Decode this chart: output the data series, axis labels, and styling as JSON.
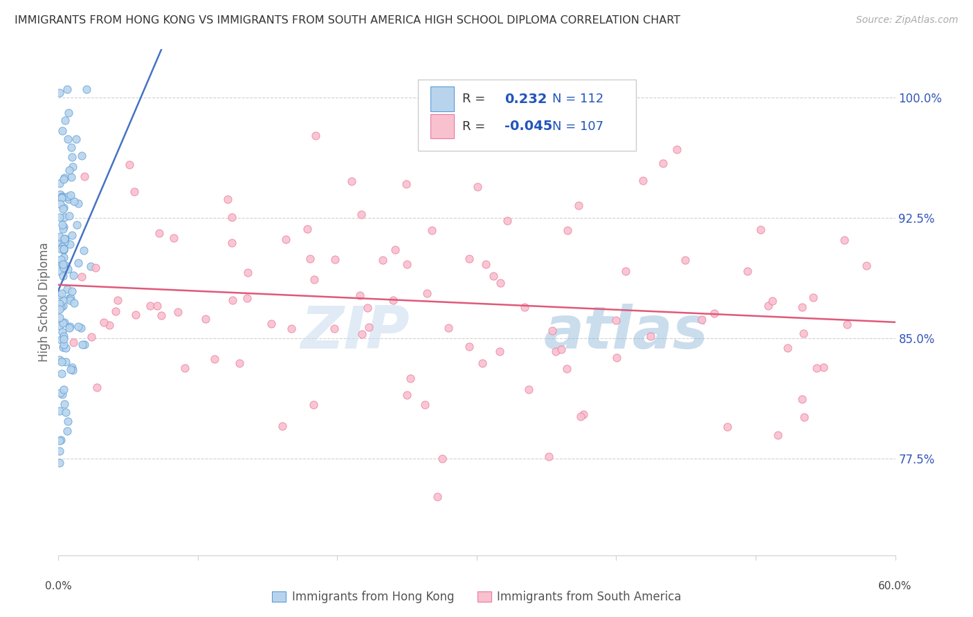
{
  "title": "IMMIGRANTS FROM HONG KONG VS IMMIGRANTS FROM SOUTH AMERICA HIGH SCHOOL DIPLOMA CORRELATION CHART",
  "source": "Source: ZipAtlas.com",
  "ylabel": "High School Diploma",
  "ytick_labels": [
    "100.0%",
    "92.5%",
    "85.0%",
    "77.5%"
  ],
  "ytick_values": [
    1.0,
    0.925,
    0.85,
    0.775
  ],
  "xlim": [
    0.0,
    0.6
  ],
  "ylim": [
    0.715,
    1.03
  ],
  "r_blue": "0.232",
  "n_blue": 112,
  "r_pink": "-0.045",
  "n_pink": 107,
  "blue_fill": "#b8d4ed",
  "pink_fill": "#f9c0ce",
  "blue_edge": "#5b9bd5",
  "pink_edge": "#e879a0",
  "blue_line": "#4472c4",
  "pink_line": "#e05878",
  "legend_text_color": "#2255bb",
  "label_color": "#3355bb",
  "title_color": "#333333",
  "source_color": "#aaaaaa",
  "grid_color": "#d0d0d0",
  "watermark_color": "#ddeeff",
  "bottom_label_color": "#555555"
}
